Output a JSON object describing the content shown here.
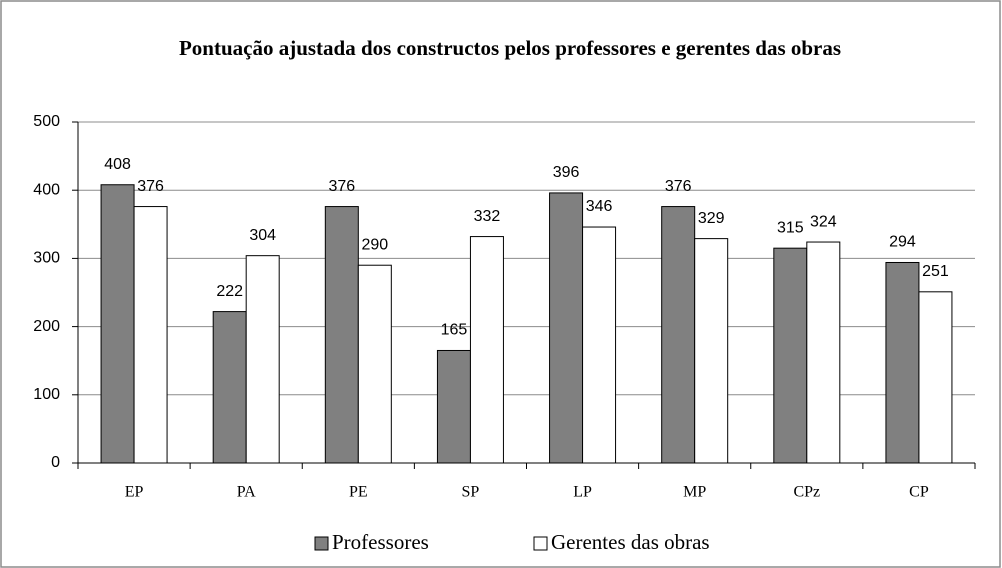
{
  "chart_data": {
    "type": "bar",
    "title": "Pontuação ajustada dos constructos pelos professores e gerentes das obras",
    "categories": [
      "EP",
      "PA",
      "PE",
      "SP",
      "LP",
      "MP",
      "CPz",
      "CP"
    ],
    "series": [
      {
        "name": "Professores",
        "color": "#808080",
        "values": [
          408,
          222,
          376,
          165,
          396,
          376,
          315,
          294
        ]
      },
      {
        "name": "Gerentes das obras",
        "color": "#ffffff",
        "values": [
          376,
          304,
          290,
          332,
          346,
          329,
          324,
          251
        ]
      }
    ],
    "ylim": [
      0,
      500
    ],
    "yticks": [
      0,
      100,
      200,
      300,
      400,
      500
    ],
    "grid": true,
    "legend": "bottom"
  }
}
